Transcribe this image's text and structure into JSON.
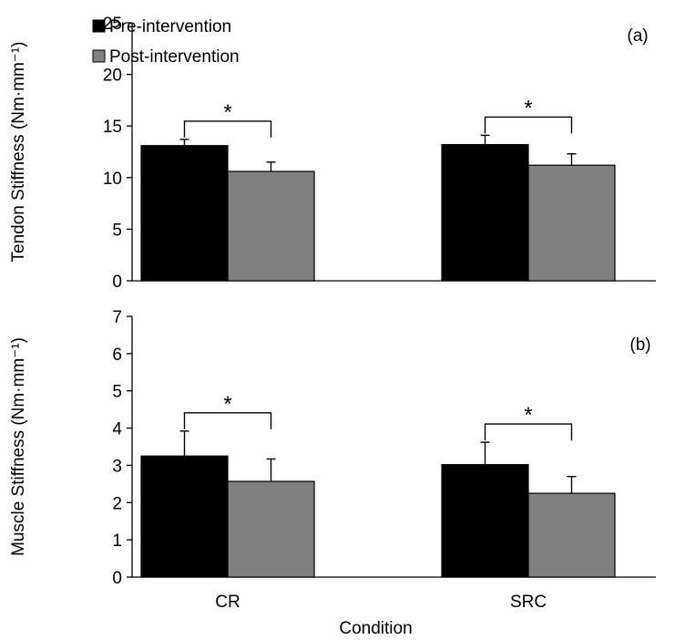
{
  "chart_data": [
    {
      "panel": "(a)",
      "type": "bar",
      "categories": [
        "CR",
        "SRC"
      ],
      "ylabel": "Tendon Stiffness (Nm·mm⁻¹)",
      "ylim": [
        0,
        25
      ],
      "yticks": [
        0,
        5,
        10,
        15,
        20,
        25
      ],
      "grid": false,
      "legend": "top-left",
      "series": [
        {
          "name": "Pre-intervention",
          "color": "#000000",
          "values": [
            13.1,
            13.2
          ],
          "errors": [
            0.6,
            0.9
          ]
        },
        {
          "name": "Post-intervention",
          "color": "#808080",
          "values": [
            10.6,
            11.2
          ],
          "errors": [
            0.9,
            1.1
          ]
        }
      ],
      "significance": [
        {
          "category": "CR",
          "label": "*"
        },
        {
          "category": "SRC",
          "label": "*"
        }
      ]
    },
    {
      "panel": "(b)",
      "type": "bar",
      "categories": [
        "CR",
        "SRC"
      ],
      "ylabel": "Muscle Stiffness (Nm·mm⁻¹)",
      "xlabel": "Condition",
      "ylim": [
        0,
        7
      ],
      "yticks": [
        0,
        1,
        2,
        3,
        4,
        5,
        6,
        7
      ],
      "grid": false,
      "series": [
        {
          "name": "Pre-intervention",
          "color": "#000000",
          "values": [
            3.25,
            3.02
          ],
          "errors": [
            0.67,
            0.6
          ]
        },
        {
          "name": "Post-intervention",
          "color": "#808080",
          "values": [
            2.57,
            2.25
          ],
          "errors": [
            0.6,
            0.45
          ]
        }
      ],
      "significance": [
        {
          "category": "CR",
          "label": "*"
        },
        {
          "category": "SRC",
          "label": "*"
        }
      ]
    }
  ]
}
